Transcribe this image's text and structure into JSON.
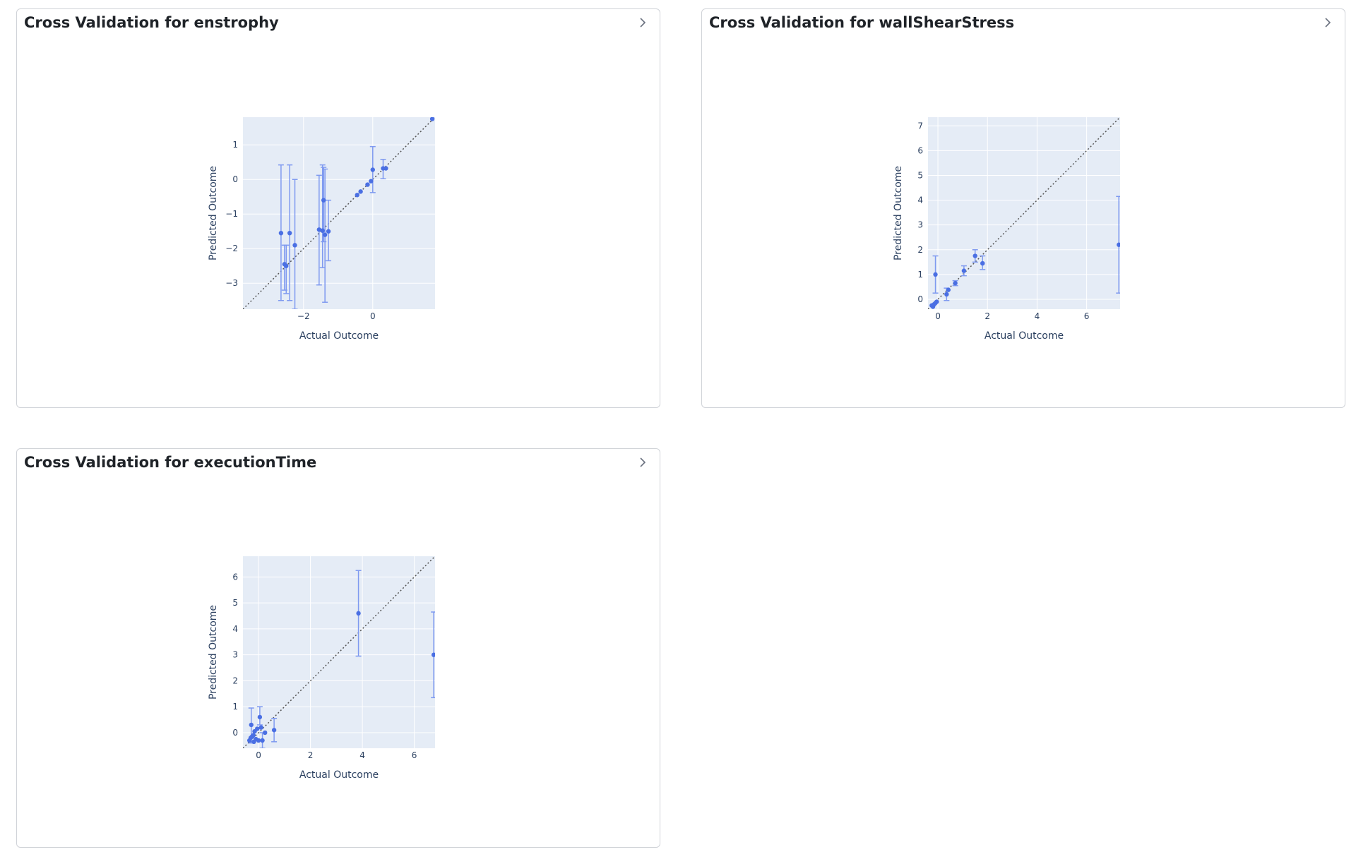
{
  "colors": {
    "marker": "#4a6fe3",
    "error_bar": "#7f9af0",
    "plot_bg": "#e5ecf6",
    "grid": "#ffffff",
    "diagonal": "#555555"
  },
  "icons": {
    "expand": "chevron-right-icon"
  },
  "panels": [
    {
      "title": "Cross Validation for enstrophy"
    },
    {
      "title": "Cross Validation for wallShearStress"
    },
    {
      "title": "Cross Validation for executionTime"
    }
  ],
  "chart_data": [
    {
      "type": "scatter",
      "title": "Cross Validation for enstrophy",
      "xlabel": "Actual Outcome",
      "ylabel": "Predicted Outcome",
      "xlim": [
        -3.75,
        1.8
      ],
      "ylim": [
        -3.75,
        1.8
      ],
      "xticks": [
        -2,
        0
      ],
      "yticks": [
        -3,
        -2,
        -1,
        0,
        1
      ],
      "tick_labels_x": [
        "−2",
        "0"
      ],
      "tick_labels_y": [
        "−3",
        "−2",
        "−1",
        "0",
        "1"
      ],
      "grid": true,
      "diagonal": true,
      "points": [
        {
          "x": -2.65,
          "y": -1.55,
          "lo": -3.5,
          "hi": 0.42
        },
        {
          "x": -2.55,
          "y": -2.45,
          "lo": -3.2,
          "hi": -1.9
        },
        {
          "x": -2.5,
          "y": -2.5,
          "lo": -3.3,
          "hi": -1.9
        },
        {
          "x": -2.4,
          "y": -1.55,
          "lo": -3.5,
          "hi": 0.42
        },
        {
          "x": -2.25,
          "y": -1.9,
          "lo": -3.75,
          "hi": 0.0
        },
        {
          "x": -1.55,
          "y": -1.45,
          "lo": -3.05,
          "hi": 0.12
        },
        {
          "x": -1.45,
          "y": -1.48,
          "lo": -2.55,
          "hi": 0.42
        },
        {
          "x": -1.42,
          "y": -0.6,
          "lo": -1.8,
          "hi": 0.35
        },
        {
          "x": -1.38,
          "y": -1.6,
          "lo": -3.55,
          "hi": 0.3
        },
        {
          "x": -1.28,
          "y": -1.5,
          "lo": -2.35,
          "hi": -0.6
        },
        {
          "x": -0.45,
          "y": -0.45,
          "lo": -0.45,
          "hi": -0.45
        },
        {
          "x": -0.35,
          "y": -0.35,
          "lo": -0.35,
          "hi": -0.35
        },
        {
          "x": -0.15,
          "y": -0.15,
          "lo": -0.15,
          "hi": -0.15
        },
        {
          "x": -0.05,
          "y": -0.05,
          "lo": -0.05,
          "hi": -0.05
        },
        {
          "x": 0.0,
          "y": 0.28,
          "lo": -0.38,
          "hi": 0.95
        },
        {
          "x": 0.3,
          "y": 0.32,
          "lo": 0.02,
          "hi": 0.58
        },
        {
          "x": 0.38,
          "y": 0.32,
          "lo": 0.32,
          "hi": 0.32
        },
        {
          "x": 1.72,
          "y": 1.75,
          "lo": 1.75,
          "hi": 1.75
        }
      ]
    },
    {
      "type": "scatter",
      "title": "Cross Validation for wallShearStress",
      "xlabel": "Actual Outcome",
      "ylabel": "Predicted Outcome",
      "xlim": [
        -0.4,
        7.35
      ],
      "ylim": [
        -0.4,
        7.35
      ],
      "xticks": [
        0,
        2,
        4,
        6
      ],
      "yticks": [
        0,
        1,
        2,
        3,
        4,
        5,
        6,
        7
      ],
      "tick_labels_x": [
        "0",
        "2",
        "4",
        "6"
      ],
      "tick_labels_y": [
        "0",
        "1",
        "2",
        "3",
        "4",
        "5",
        "6",
        "7"
      ],
      "grid": true,
      "diagonal": true,
      "points": [
        {
          "x": -0.25,
          "y": -0.25,
          "lo": -0.25,
          "hi": -0.25
        },
        {
          "x": -0.2,
          "y": -0.3,
          "lo": -0.3,
          "hi": -0.3
        },
        {
          "x": -0.15,
          "y": -0.2,
          "lo": -0.2,
          "hi": -0.2
        },
        {
          "x": -0.1,
          "y": -0.15,
          "lo": -0.15,
          "hi": -0.15
        },
        {
          "x": -0.05,
          "y": -0.1,
          "lo": -0.1,
          "hi": -0.1
        },
        {
          "x": -0.1,
          "y": 1.0,
          "lo": 0.25,
          "hi": 1.75
        },
        {
          "x": 0.35,
          "y": 0.2,
          "lo": -0.05,
          "hi": 0.45
        },
        {
          "x": 0.42,
          "y": 0.38,
          "lo": 0.38,
          "hi": 0.38
        },
        {
          "x": 0.7,
          "y": 0.65,
          "lo": 0.55,
          "hi": 0.75
        },
        {
          "x": 1.05,
          "y": 1.15,
          "lo": 0.95,
          "hi": 1.35
        },
        {
          "x": 1.5,
          "y": 1.75,
          "lo": 1.5,
          "hi": 2.0
        },
        {
          "x": 1.8,
          "y": 1.45,
          "lo": 1.2,
          "hi": 1.75
        },
        {
          "x": 7.3,
          "y": 2.2,
          "lo": 0.25,
          "hi": 4.15
        }
      ]
    },
    {
      "type": "scatter",
      "title": "Cross Validation for executionTime",
      "xlabel": "Actual Outcome",
      "ylabel": "Predicted Outcome",
      "xlim": [
        -0.6,
        6.8
      ],
      "ylim": [
        -0.6,
        6.8
      ],
      "xticks": [
        0,
        2,
        4,
        6
      ],
      "yticks": [
        0,
        1,
        2,
        3,
        4,
        5,
        6
      ],
      "tick_labels_x": [
        "0",
        "2",
        "4",
        "6"
      ],
      "tick_labels_y": [
        "0",
        "1",
        "2",
        "3",
        "4",
        "5",
        "6"
      ],
      "grid": true,
      "diagonal": true,
      "points": [
        {
          "x": -0.35,
          "y": -0.3,
          "lo": -0.3,
          "hi": -0.3
        },
        {
          "x": -0.3,
          "y": -0.2,
          "lo": -0.2,
          "hi": -0.2
        },
        {
          "x": -0.28,
          "y": 0.3,
          "lo": -0.4,
          "hi": 0.95
        },
        {
          "x": -0.25,
          "y": -0.15,
          "lo": -0.15,
          "hi": -0.15
        },
        {
          "x": -0.2,
          "y": -0.1,
          "lo": -0.1,
          "hi": -0.1
        },
        {
          "x": -0.18,
          "y": -0.35,
          "lo": -0.35,
          "hi": -0.35
        },
        {
          "x": -0.15,
          "y": 0.05,
          "lo": 0.05,
          "hi": 0.05
        },
        {
          "x": -0.1,
          "y": -0.25,
          "lo": -0.25,
          "hi": -0.25
        },
        {
          "x": -0.05,
          "y": 0.15,
          "lo": 0.15,
          "hi": 0.15
        },
        {
          "x": 0.0,
          "y": -0.3,
          "lo": -0.3,
          "hi": -0.3
        },
        {
          "x": 0.05,
          "y": 0.6,
          "lo": 0.3,
          "hi": 1.0
        },
        {
          "x": 0.1,
          "y": 0.2,
          "lo": 0.2,
          "hi": 0.2
        },
        {
          "x": 0.15,
          "y": -0.3,
          "lo": -0.6,
          "hi": 0.0
        },
        {
          "x": 0.25,
          "y": 0.0,
          "lo": 0.0,
          "hi": 0.0
        },
        {
          "x": 0.6,
          "y": 0.1,
          "lo": -0.35,
          "hi": 0.55
        },
        {
          "x": 3.85,
          "y": 4.6,
          "lo": 2.95,
          "hi": 6.25
        },
        {
          "x": 6.75,
          "y": 3.0,
          "lo": 1.35,
          "hi": 4.65
        }
      ]
    }
  ]
}
